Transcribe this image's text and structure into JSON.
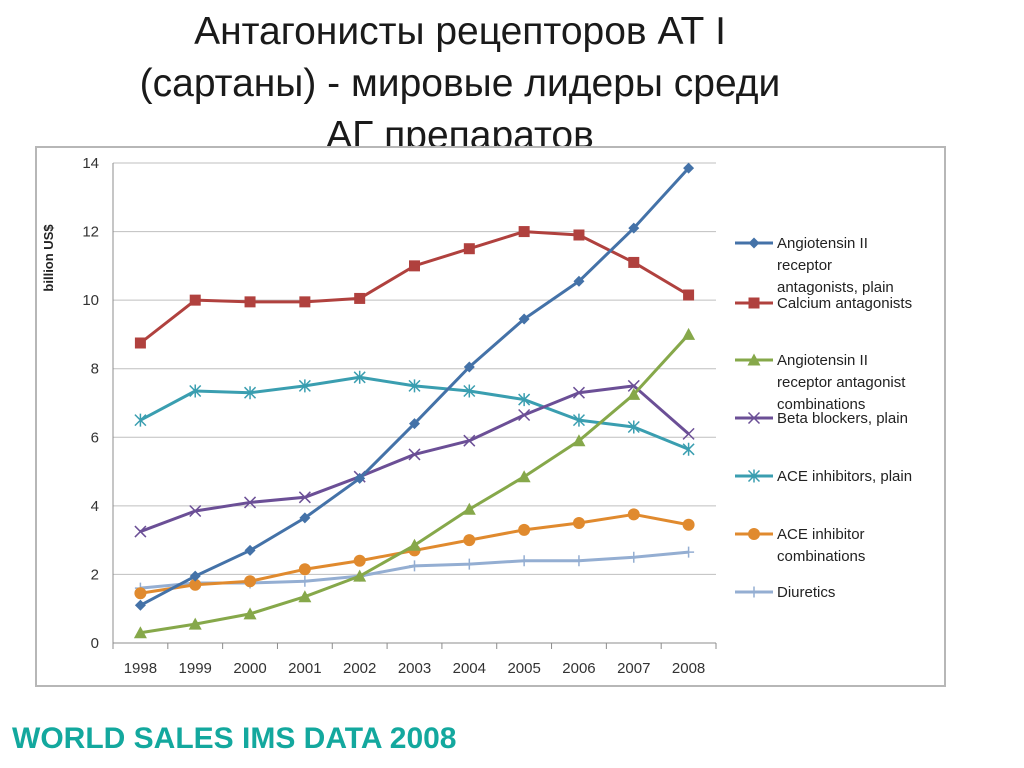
{
  "slide": {
    "title_lines": [
      "Антагонисты рецепторов АТ I",
      "(сартаны) - мировые лидеры среди",
      "АГ препаратов"
    ],
    "footer": "WORLD SALES IMS DATA 2008"
  },
  "chart_data": {
    "type": "line",
    "ylabel": "billion US$",
    "xlabel": "",
    "ylim": [
      0,
      14
    ],
    "yticks": [
      0,
      2,
      4,
      6,
      8,
      10,
      12,
      14
    ],
    "grid": true,
    "legend_position": "right",
    "categories": [
      "1998",
      "1999",
      "2000",
      "2001",
      "2002",
      "2003",
      "2004",
      "2005",
      "2006",
      "2007",
      "2008"
    ],
    "series": [
      {
        "name_lines": [
          "Angiotensin II",
          "receptor",
          "antagonists, plain"
        ],
        "color": "#4472a8",
        "marker": "diamond",
        "values": [
          1.1,
          1.95,
          2.7,
          3.65,
          4.8,
          6.4,
          8.05,
          9.45,
          10.55,
          12.1,
          13.85
        ]
      },
      {
        "name_lines": [
          "Calcium antagonists"
        ],
        "color": "#b0413e",
        "marker": "square",
        "values": [
          8.75,
          10.0,
          9.95,
          9.95,
          10.05,
          11.0,
          11.5,
          12.0,
          11.9,
          11.1,
          10.15
        ]
      },
      {
        "name_lines": [
          "Angiotensin II",
          "receptor antagonist",
          "combinations"
        ],
        "color": "#86a84a",
        "marker": "triangle",
        "values": [
          0.3,
          0.55,
          0.85,
          1.35,
          1.95,
          2.85,
          3.9,
          4.85,
          5.9,
          7.25,
          9.0
        ]
      },
      {
        "name_lines": [
          "Beta blockers, plain"
        ],
        "color": "#6b4f96",
        "marker": "x",
        "values": [
          3.25,
          3.85,
          4.1,
          4.25,
          4.85,
          5.5,
          5.9,
          6.65,
          7.3,
          7.5,
          6.1
        ]
      },
      {
        "name_lines": [
          "ACE inhibitors, plain"
        ],
        "color": "#3a9eb0",
        "marker": "star",
        "values": [
          6.5,
          7.35,
          7.3,
          7.5,
          7.75,
          7.5,
          7.35,
          7.1,
          6.5,
          6.3,
          5.65
        ]
      },
      {
        "name_lines": [
          "ACE inhibitor",
          "combinations"
        ],
        "color": "#e08a2e",
        "marker": "circle",
        "values": [
          1.45,
          1.7,
          1.8,
          2.15,
          2.4,
          2.7,
          3.0,
          3.3,
          3.5,
          3.75,
          3.45
        ]
      },
      {
        "name_lines": [
          "Diuretics"
        ],
        "color": "#94aed2",
        "marker": "plus",
        "values": [
          1.6,
          1.75,
          1.75,
          1.8,
          1.95,
          2.25,
          2.3,
          2.4,
          2.4,
          2.5,
          2.65
        ]
      }
    ]
  }
}
